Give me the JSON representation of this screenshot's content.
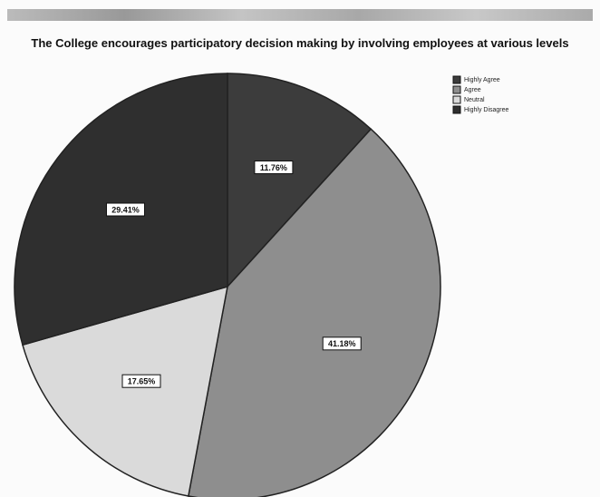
{
  "chart_data": {
    "type": "pie",
    "title": "The College encourages participatory decision making by involving employees at various levels",
    "categories": [
      "Highly Agree",
      "Agree",
      "Neutral",
      "Highly Disagree"
    ],
    "values": [
      11.76,
      41.18,
      17.65,
      29.41
    ],
    "value_labels": [
      "11.76%",
      "41.18%",
      "17.65%",
      "29.41%"
    ],
    "colors": [
      "#3c3c3c",
      "#8e8e8e",
      "#dadada",
      "#2f2f2f"
    ],
    "legend": "top-right"
  }
}
